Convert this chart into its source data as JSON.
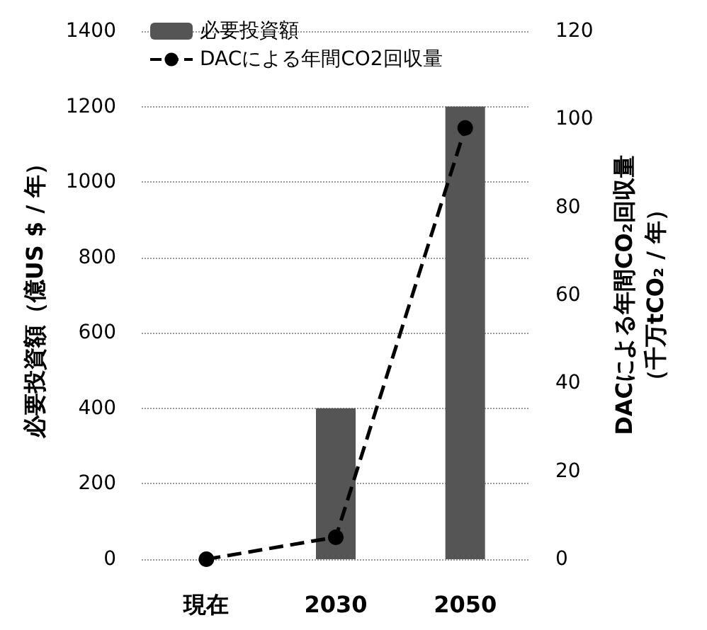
{
  "chart_data": {
    "type": "bar",
    "categories": [
      "現在",
      "2030",
      "2050"
    ],
    "series": [
      {
        "name": "必要投資額",
        "color": "#555555",
        "values": [
          0,
          400,
          1200
        ]
      },
      {
        "name": "DACによる年間CO2回収量",
        "type": "line",
        "axis": "y2",
        "color": "#000000",
        "values": [
          0,
          5,
          98
        ],
        "marker": "circle",
        "line_style": "dashed"
      }
    ],
    "ylabel": "必要投資額（億US $ / 年）",
    "y2label": "DACによる年間CO₂回収量（千万tCO₂ / 年）",
    "ylim": [
      0,
      1400
    ],
    "yticks": [
      0,
      200,
      400,
      600,
      800,
      1000,
      1200,
      1400
    ],
    "y2lim": [
      0,
      120
    ],
    "y2ticks": [
      0,
      20,
      40,
      60,
      80,
      100,
      120
    ],
    "grid": "y",
    "legend": "top left"
  }
}
